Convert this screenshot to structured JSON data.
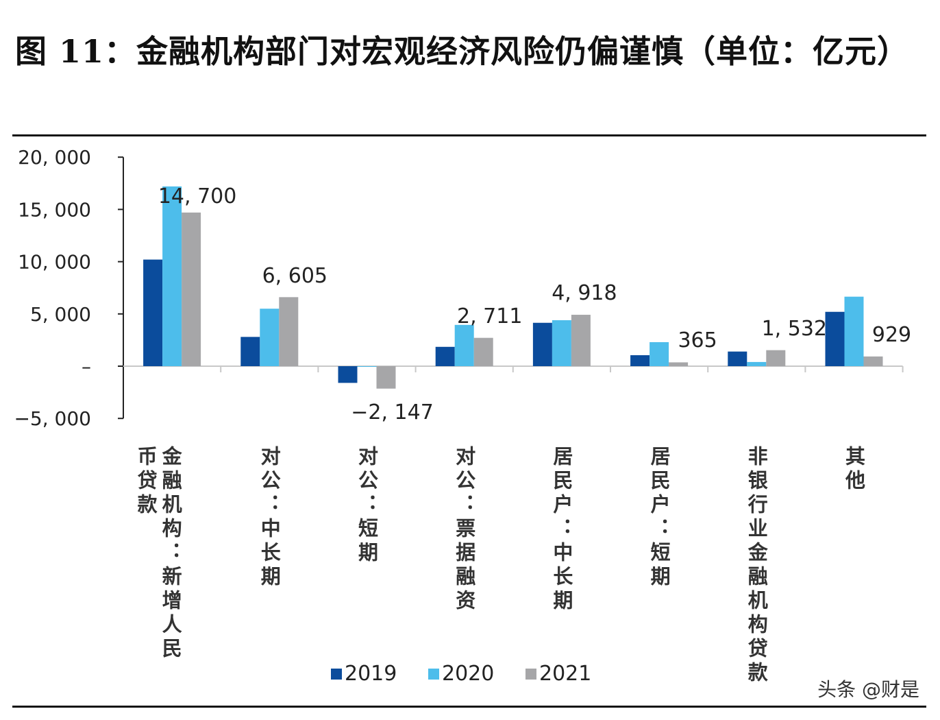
{
  "title": "图 11：金融机构部门对宏观经济风险仍偏谨慎（单位：亿元）",
  "watermark": "头条 @财是",
  "chart_data": {
    "type": "bar",
    "title": "图 11：金融机构部门对宏观经济风险仍偏谨慎（单位：亿元）",
    "unit": "亿元",
    "categories": [
      "金融机构：新增人民币贷款",
      "对公：中长期",
      "对公：短期",
      "对公：票据融资",
      "居民户：中长期",
      "居民户：短期",
      "非银行业金融机构贷款",
      "其他"
    ],
    "series": [
      {
        "name": "2019",
        "color": "#0B4C9C",
        "values": [
          10200,
          2800,
          -1600,
          1850,
          4150,
          1050,
          1400,
          5200
        ]
      },
      {
        "name": "2020",
        "color": "#4DBDEB",
        "values": [
          17200,
          5500,
          -50,
          3950,
          4400,
          2300,
          400,
          6650
        ]
      },
      {
        "name": "2021",
        "color": "#A6A6A8",
        "values": [
          14700,
          6605,
          -2147,
          2711,
          4918,
          365,
          1532,
          929
        ]
      }
    ],
    "data_labels": [
      "14, 700",
      "6, 605",
      "−2, 147",
      "2, 711",
      "4, 918",
      "365",
      "1, 532",
      "929"
    ],
    "yticks": [
      "20, 000",
      "15, 000",
      "10, 000",
      "5, 000",
      "–",
      "−5, 000"
    ],
    "ytick_values": [
      20000,
      15000,
      10000,
      5000,
      0,
      -5000
    ],
    "ylim": [
      -5000,
      20000
    ],
    "grid": false,
    "legend": "bottom"
  }
}
